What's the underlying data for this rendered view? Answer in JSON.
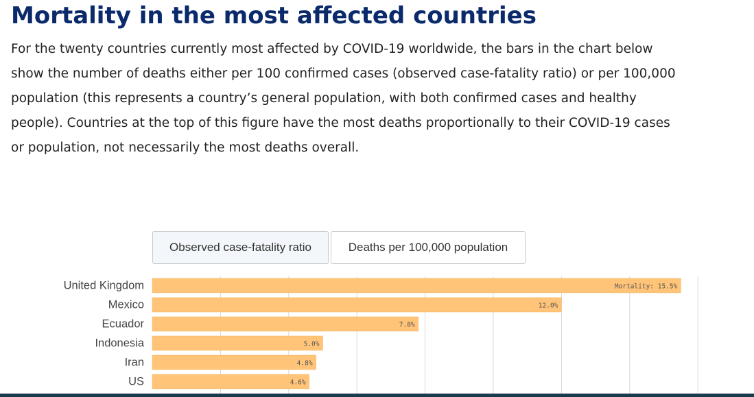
{
  "title": "Mortality in the most affected countries",
  "intro": "For the twenty countries currently most affected by COVID-19 worldwide, the bars in the chart below show the number of deaths either per 100 confirmed cases (observed case-fatality ratio) or per 100,000 population (this represents a country’s general population, with both confirmed cases and healthy people). Countries at the top of this figure have the most deaths proportionally to their COVID-19 cases or population, not necessarily the most deaths overall.",
  "tabs": {
    "active_label": "Observed case-fatality ratio",
    "inactive_label": "Deaths per 100,000 population"
  },
  "colors": {
    "bar": "#ffc478",
    "bar_edge": "#f5b560",
    "title": "#0a2a6b",
    "grid": "#d9d9d9"
  },
  "chart_data": {
    "type": "bar",
    "orientation": "horizontal",
    "categories": [
      "United Kingdom",
      "Mexico",
      "Ecuador",
      "Indonesia",
      "Iran",
      "US"
    ],
    "values": [
      15.5,
      12.0,
      7.8,
      5.0,
      4.8,
      4.6
    ],
    "value_labels": [
      "Mortality: 15.5%",
      "12.0%",
      "7.8%",
      "5.0%",
      "4.8%",
      "4.6%"
    ],
    "xlim": [
      0,
      16
    ],
    "grid": true
  }
}
